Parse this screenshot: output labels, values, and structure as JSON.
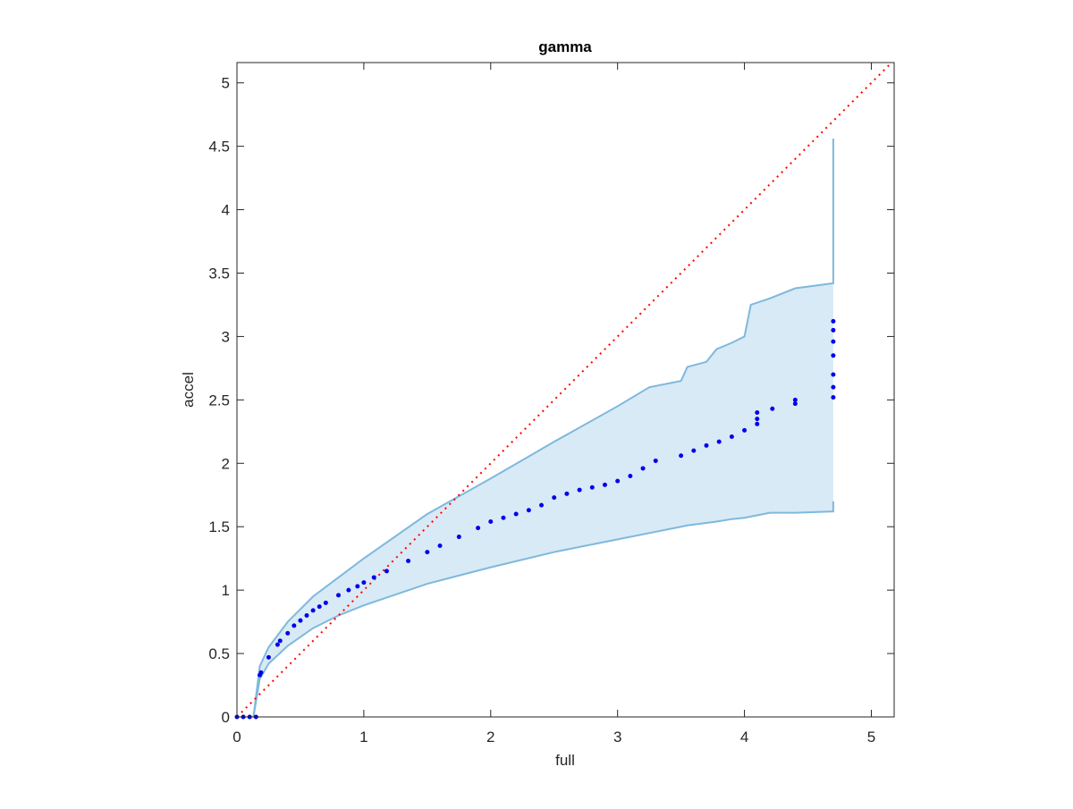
{
  "chart_data": {
    "type": "scatter",
    "title": "gamma",
    "x_label": "full",
    "y_label": "accel",
    "xlim": [
      0,
      5.18
    ],
    "ylim": [
      0,
      5.16
    ],
    "xticks": [
      0,
      1,
      2,
      3,
      4,
      5
    ],
    "yticks": [
      0,
      0.5,
      1,
      1.5,
      2,
      2.5,
      3,
      3.5,
      4,
      4.5,
      5
    ],
    "grid": false,
    "band": {
      "color": "#7fb8dd",
      "x": [
        0.13,
        0.18,
        0.25,
        0.4,
        0.6,
        0.8,
        1.0,
        1.5,
        2.0,
        2.5,
        3.0,
        3.25,
        3.5,
        3.55,
        3.7,
        3.78,
        3.9,
        4.0,
        4.05,
        4.2,
        4.4,
        4.7,
        4.7
      ],
      "lower": [
        0,
        0.3,
        0.42,
        0.56,
        0.7,
        0.8,
        0.88,
        1.05,
        1.18,
        1.3,
        1.4,
        1.45,
        1.5,
        1.51,
        1.53,
        1.54,
        1.56,
        1.57,
        1.58,
        1.61,
        1.61,
        1.62,
        1.7
      ],
      "upper": [
        0,
        0.4,
        0.55,
        0.75,
        0.95,
        1.1,
        1.25,
        1.6,
        1.88,
        2.17,
        2.45,
        2.6,
        2.65,
        2.76,
        2.8,
        2.9,
        2.95,
        3.0,
        3.25,
        3.3,
        3.38,
        3.42,
        4.56
      ]
    },
    "points": {
      "color": "#0000ee",
      "x": [
        0,
        0.05,
        0.1,
        0.15,
        0.18,
        0.19,
        0.25,
        0.32,
        0.34,
        0.4,
        0.45,
        0.5,
        0.55,
        0.6,
        0.65,
        0.7,
        0.8,
        0.88,
        0.95,
        1.0,
        1.08,
        1.18,
        1.35,
        1.5,
        1.6,
        1.75,
        1.9,
        2.0,
        2.1,
        2.2,
        2.3,
        2.4,
        2.5,
        2.6,
        2.7,
        2.8,
        2.9,
        3.0,
        3.1,
        3.2,
        3.3,
        3.5,
        3.6,
        3.7,
        3.8,
        3.9,
        4.0,
        4.1,
        4.1,
        4.1,
        4.22,
        4.4,
        4.4,
        4.7,
        4.7,
        4.7,
        4.7,
        4.7,
        4.7,
        4.7
      ],
      "y": [
        0,
        0,
        0,
        0,
        0.33,
        0.35,
        0.47,
        0.57,
        0.6,
        0.66,
        0.72,
        0.76,
        0.8,
        0.84,
        0.87,
        0.9,
        0.96,
        1.0,
        1.03,
        1.06,
        1.1,
        1.15,
        1.23,
        1.3,
        1.35,
        1.42,
        1.49,
        1.54,
        1.57,
        1.6,
        1.63,
        1.67,
        1.73,
        1.76,
        1.79,
        1.81,
        1.83,
        1.86,
        1.9,
        1.96,
        2.02,
        2.06,
        2.1,
        2.14,
        2.17,
        2.21,
        2.26,
        2.31,
        2.35,
        2.4,
        2.43,
        2.47,
        2.5,
        2.52,
        2.6,
        2.7,
        2.85,
        2.96,
        3.05,
        3.12
      ]
    },
    "reference": {
      "color": "#ff0000",
      "x": [
        0,
        5.18
      ],
      "y": [
        0,
        5.18
      ]
    }
  }
}
